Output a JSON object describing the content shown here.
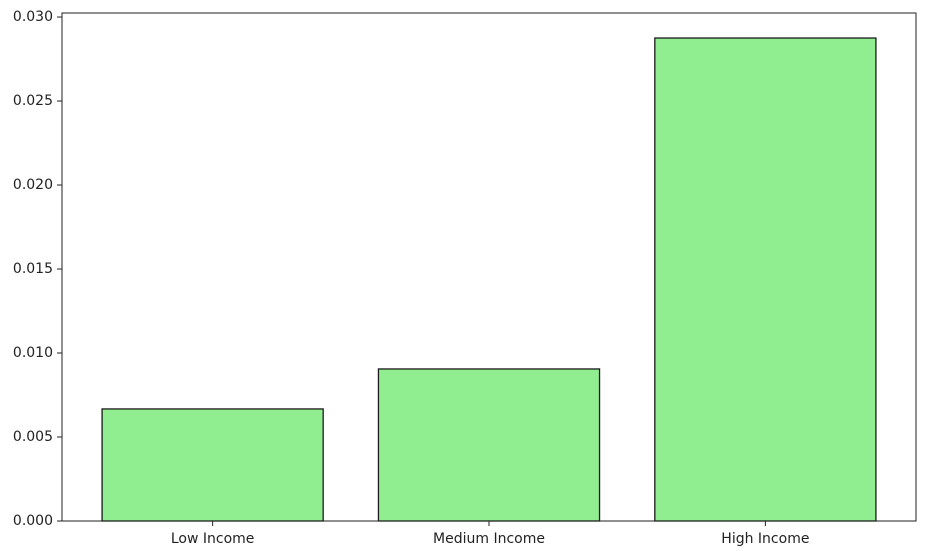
{
  "chart_data": {
    "type": "bar",
    "categories": [
      "Low Income",
      "Medium Income",
      "High Income"
    ],
    "values": [
      0.00667,
      0.00905,
      0.02875
    ],
    "color": "#90ee90",
    "edgecolor": "#1a1a1a",
    "ylim": [
      0,
      0.03024
    ],
    "yticks": [
      {
        "value": 0,
        "label": "0.000"
      },
      {
        "value": 0.005,
        "label": "0.005"
      },
      {
        "value": 0.01,
        "label": "0.010"
      },
      {
        "value": 0.015,
        "label": "0.015"
      },
      {
        "value": 0.02,
        "label": "0.020"
      },
      {
        "value": 0.025,
        "label": "0.025"
      },
      {
        "value": 0.03,
        "label": "0.030"
      }
    ],
    "grid": false
  }
}
